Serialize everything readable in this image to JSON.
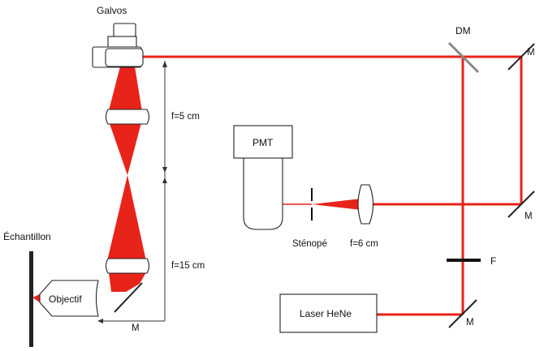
{
  "colors": {
    "beam": "#e8231a",
    "outline": "#222222",
    "background": "#ffffff"
  },
  "labels": {
    "galvos": "Galvos",
    "dm": "DM",
    "mirror": "M",
    "f1": "f=5 cm",
    "f2": "f=15 cm",
    "pmt": "PMT",
    "pinhole": "Sténopé",
    "f3": "f=6 cm",
    "filter": "F",
    "laser": "Laser HeNe",
    "sample": "Échantillon",
    "objective": "Objectif"
  }
}
